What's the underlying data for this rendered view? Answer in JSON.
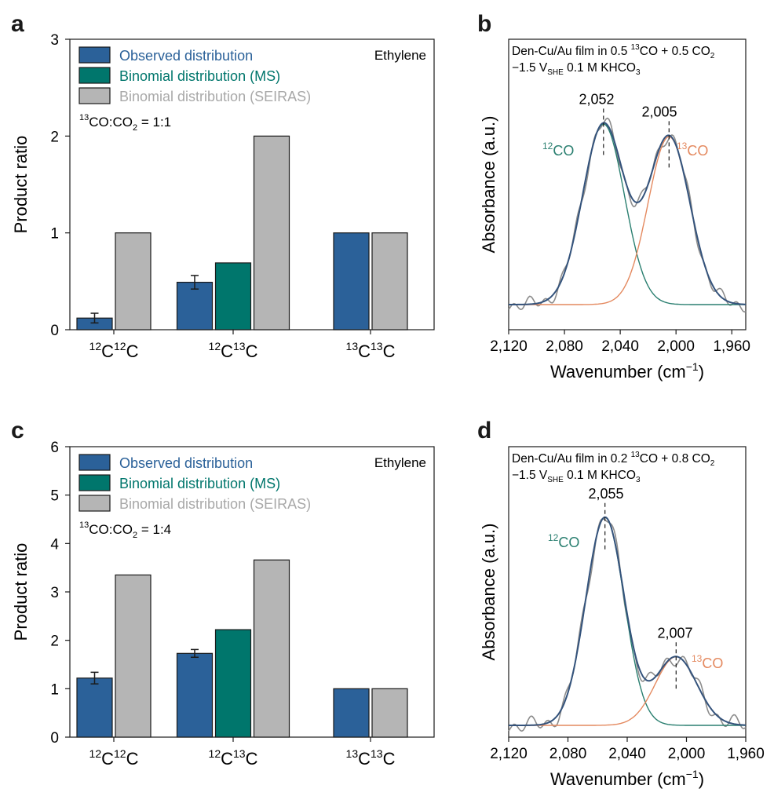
{
  "colors": {
    "observed": "#2b6199",
    "binomial_ms": "#00766c",
    "binomial_seiras": "#b5b5b5",
    "co12": "#2a7f70",
    "co13": "#e4895f",
    "envelope": "#34537c",
    "raw": "#8c8c8c",
    "seiras_text": "#a8a8a8"
  },
  "panel_labels": {
    "a": "a",
    "b": "b",
    "c": "c",
    "d": "d"
  },
  "chart_data": [
    {
      "id": "a",
      "type": "bar",
      "ylabel": "Product ratio",
      "ylim": [
        0,
        3
      ],
      "yticks": [
        "0",
        "1",
        "2",
        "3"
      ],
      "ytick_values": [
        0,
        1,
        2,
        3
      ],
      "categories": [
        {
          "pre1": "12",
          "b1": "C",
          "pre2": "12",
          "b2": "C"
        },
        {
          "pre1": "12",
          "b1": "C",
          "pre2": "13",
          "b2": "C"
        },
        {
          "pre1": "13",
          "b1": "C",
          "pre2": "13",
          "b2": "C"
        }
      ],
      "series": [
        {
          "name": "Observed distribution",
          "values": [
            0.12,
            0.49,
            1.0
          ],
          "errors": [
            0.05,
            0.07,
            null
          ]
        },
        {
          "name": "Binomial distribution (MS)",
          "values": [
            null,
            0.69,
            null
          ]
        },
        {
          "name": "Binomial distribution (SEIRAS)",
          "values": [
            1.0,
            2.0,
            1.0
          ]
        }
      ],
      "legend": [
        "Observed distribution",
        "Binomial distribution (MS)",
        "Binomial distribution (SEIRAS)"
      ],
      "corner_label": "Ethylene",
      "ratio": {
        "sup": "13",
        "base": "CO:CO",
        "sub": "2",
        "tail": " = 1:1"
      }
    },
    {
      "id": "b",
      "type": "line",
      "xlabel": {
        "main": "Wavenumber (cm",
        "sup": "−1",
        "end": ")"
      },
      "ylabel": "Absorbance (a.u.)",
      "xlim": [
        2120,
        1950
      ],
      "xticks": [
        "2,120",
        "2,080",
        "2,040",
        "2,000",
        "1,960"
      ],
      "xtick_values": [
        2120,
        2080,
        2040,
        2000,
        1960
      ],
      "title": {
        "line1_pre": "Den-Cu/Au film in 0.5 ",
        "sup13": "13",
        "line1_mid": "CO + 0.5 CO",
        "sub2": "2",
        "line2_pre": "−1.5 V",
        "line2_sub": "SHE",
        "line2_mid": " 0.1 M KHCO",
        "line2_sub3": "3"
      },
      "peaks": [
        {
          "label": "2,052",
          "center": 2052,
          "amp": 1.0,
          "width": 15
        },
        {
          "label": "2,005",
          "center": 2005,
          "amp": 0.93,
          "width": 15
        }
      ],
      "species": [
        {
          "sup": "12",
          "base": "CO"
        },
        {
          "sup": "13",
          "base": "CO"
        }
      ]
    },
    {
      "id": "c",
      "type": "bar",
      "ylabel": "Product ratio",
      "ylim": [
        0,
        6
      ],
      "yticks": [
        "0",
        "1",
        "2",
        "3",
        "4",
        "5",
        "6"
      ],
      "ytick_values": [
        0,
        1,
        2,
        3,
        4,
        5,
        6
      ],
      "categories": [
        {
          "pre1": "12",
          "b1": "C",
          "pre2": "12",
          "b2": "C"
        },
        {
          "pre1": "12",
          "b1": "C",
          "pre2": "13",
          "b2": "C"
        },
        {
          "pre1": "13",
          "b1": "C",
          "pre2": "13",
          "b2": "C"
        }
      ],
      "series": [
        {
          "name": "Observed distribution",
          "values": [
            1.22,
            1.73,
            1.0
          ],
          "errors": [
            0.12,
            0.08,
            null
          ]
        },
        {
          "name": "Binomial distribution (MS)",
          "values": [
            null,
            2.22,
            null
          ]
        },
        {
          "name": "Binomial distribution (SEIRAS)",
          "values": [
            3.35,
            3.66,
            1.0
          ]
        }
      ],
      "legend": [
        "Observed distribution",
        "Binomial distribution (MS)",
        "Binomial distribution (SEIRAS)"
      ],
      "corner_label": "Ethylene",
      "ratio": {
        "sup": "13",
        "base": "CO:CO",
        "sub": "2",
        "tail": " = 1:4"
      }
    },
    {
      "id": "d",
      "type": "line",
      "xlabel": {
        "main": "Wavenumber (cm",
        "sup": "−1",
        "end": ")"
      },
      "ylabel": "Absorbance (a.u.)",
      "xlim": [
        2120,
        1960
      ],
      "xticks": [
        "2,120",
        "2,080",
        "2,040",
        "2,000",
        "1,960"
      ],
      "xtick_values": [
        2120,
        2080,
        2040,
        2000,
        1960
      ],
      "title": {
        "line1_pre": "Den-Cu/Au film in 0.2 ",
        "sup13": "13",
        "line1_mid": "CO + 0.8 CO",
        "sub2": "2",
        "line2_pre": "−1.5 V",
        "line2_sub": "SHE",
        "line2_mid": " 0.1 M KHCO",
        "line2_sub3": "3"
      },
      "peaks": [
        {
          "label": "2,055",
          "center": 2055,
          "amp": 1.0,
          "width": 13
        },
        {
          "label": "2,007",
          "center": 2007,
          "amp": 0.33,
          "width": 14
        }
      ],
      "species": [
        {
          "sup": "12",
          "base": "CO"
        },
        {
          "sup": "13",
          "base": "CO"
        }
      ]
    }
  ]
}
